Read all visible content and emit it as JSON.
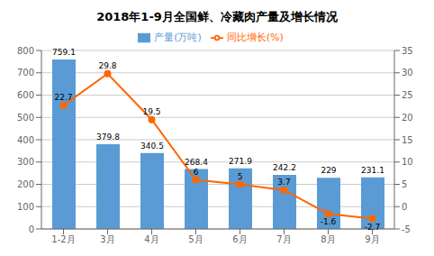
{
  "chart_data": {
    "type": "bar",
    "title": "2018年1-9月全国鲜、冷藏肉产量及增长情况",
    "categories": [
      "1-2月",
      "3月",
      "4月",
      "5月",
      "6月",
      "7月",
      "8月",
      "9月"
    ],
    "series": [
      {
        "name": "产量(万吨)",
        "type": "bar",
        "color": "#5B9BD5",
        "values": [
          759.1,
          379.8,
          340.5,
          268.4,
          271.9,
          242.2,
          229,
          231.1
        ]
      },
      {
        "name": "同比增长(%)",
        "type": "line",
        "axis": "y2",
        "color": "#FF6600",
        "marker": "circle",
        "values": [
          22.7,
          29.8,
          19.5,
          6,
          5,
          3.7,
          -1.6,
          -2.7
        ]
      }
    ],
    "ylim": [
      0,
      800
    ],
    "yticks": [
      0,
      100,
      200,
      300,
      400,
      500,
      600,
      700,
      800
    ],
    "y2lim": [
      -5,
      35
    ],
    "y2ticks": [
      -5,
      0,
      5,
      10,
      15,
      20,
      25,
      30,
      35
    ],
    "grid": true,
    "data_labels": true,
    "legend": "top"
  }
}
